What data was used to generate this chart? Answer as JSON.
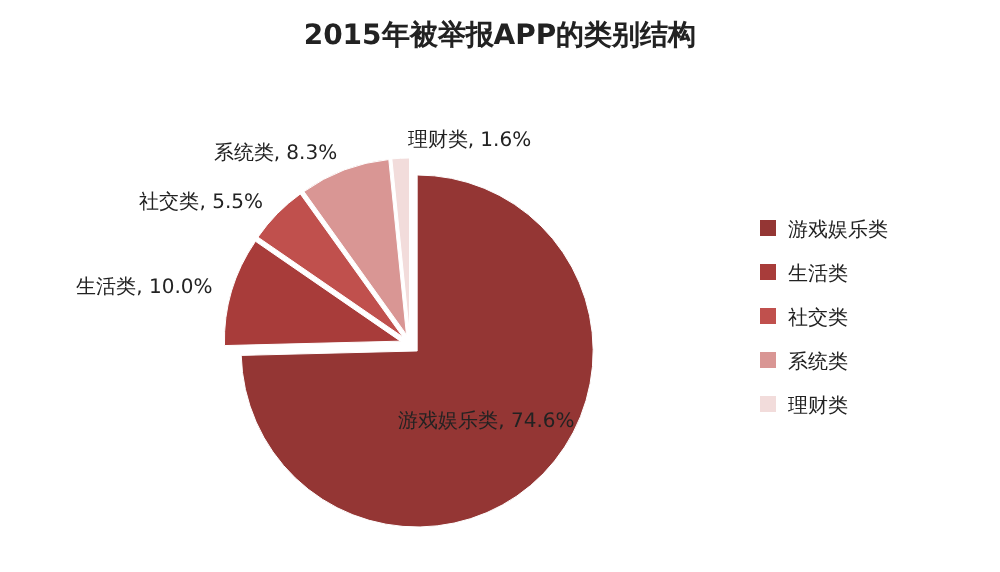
{
  "chart_data": {
    "type": "pie",
    "title": "2015年被举报APP的类别结构",
    "categories": [
      "游戏娱乐类",
      "生活类",
      "社交类",
      "系统类",
      "理财类"
    ],
    "values": [
      74.6,
      10.0,
      5.5,
      8.3,
      1.6
    ],
    "value_labels": [
      "游戏娱乐类, 74.6%",
      "生活类, 10.0%",
      "社交类, 5.5%",
      "系统类, 8.3%",
      "理财类, 1.6%"
    ],
    "colors": [
      "#943634",
      "#a83c3a",
      "#c0504d",
      "#d99694",
      "#f2dcdb"
    ],
    "legend": "right"
  }
}
